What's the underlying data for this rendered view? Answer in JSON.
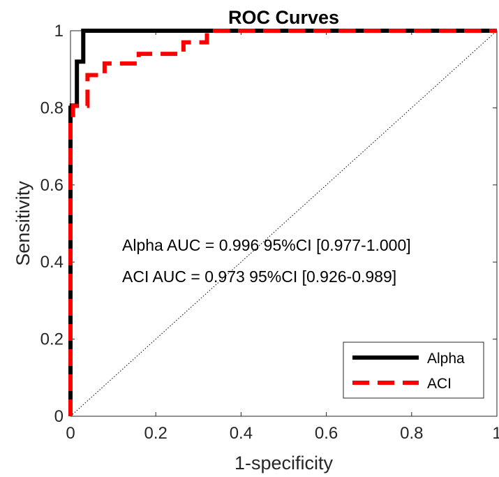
{
  "chart_data": {
    "type": "line",
    "title": "ROC Curves",
    "xlabel": "1-specificity",
    "ylabel": "Sensitivity",
    "xlim": [
      0,
      1
    ],
    "ylim": [
      0,
      1
    ],
    "xticks": [
      "0",
      "0.2",
      "0.4",
      "0.6",
      "0.8",
      "1"
    ],
    "yticks": [
      "0",
      "0.2",
      "0.4",
      "0.6",
      "0.8",
      "1"
    ],
    "grid": false,
    "legend_position": "bottom-right",
    "annotations": [
      "Alpha AUC = 0.996  95%CI [0.977-1.000]",
      "ACI AUC = 0.973  95%CI [0.926-0.989]"
    ],
    "reference_line": {
      "x": [
        0,
        1
      ],
      "y": [
        0,
        1
      ],
      "style": "dotted"
    },
    "series": [
      {
        "name": "Alpha",
        "color": "#000000",
        "style": "solid",
        "x": [
          0,
          0,
          0.003,
          0.003,
          0.015,
          0.015,
          0.03,
          0.03,
          1
        ],
        "y": [
          0,
          0.8,
          0.8,
          0.806,
          0.806,
          0.92,
          0.92,
          1.0,
          1.0
        ]
      },
      {
        "name": "ACI",
        "color": "#ff0000",
        "style": "dashed",
        "x": [
          0,
          0,
          0.006,
          0.006,
          0.04,
          0.04,
          0.08,
          0.08,
          0.16,
          0.16,
          0.265,
          0.265,
          0.32,
          0.32,
          1
        ],
        "y": [
          0,
          0.775,
          0.775,
          0.805,
          0.805,
          0.885,
          0.885,
          0.915,
          0.915,
          0.94,
          0.94,
          0.97,
          0.97,
          1.0,
          1.0
        ]
      }
    ]
  }
}
